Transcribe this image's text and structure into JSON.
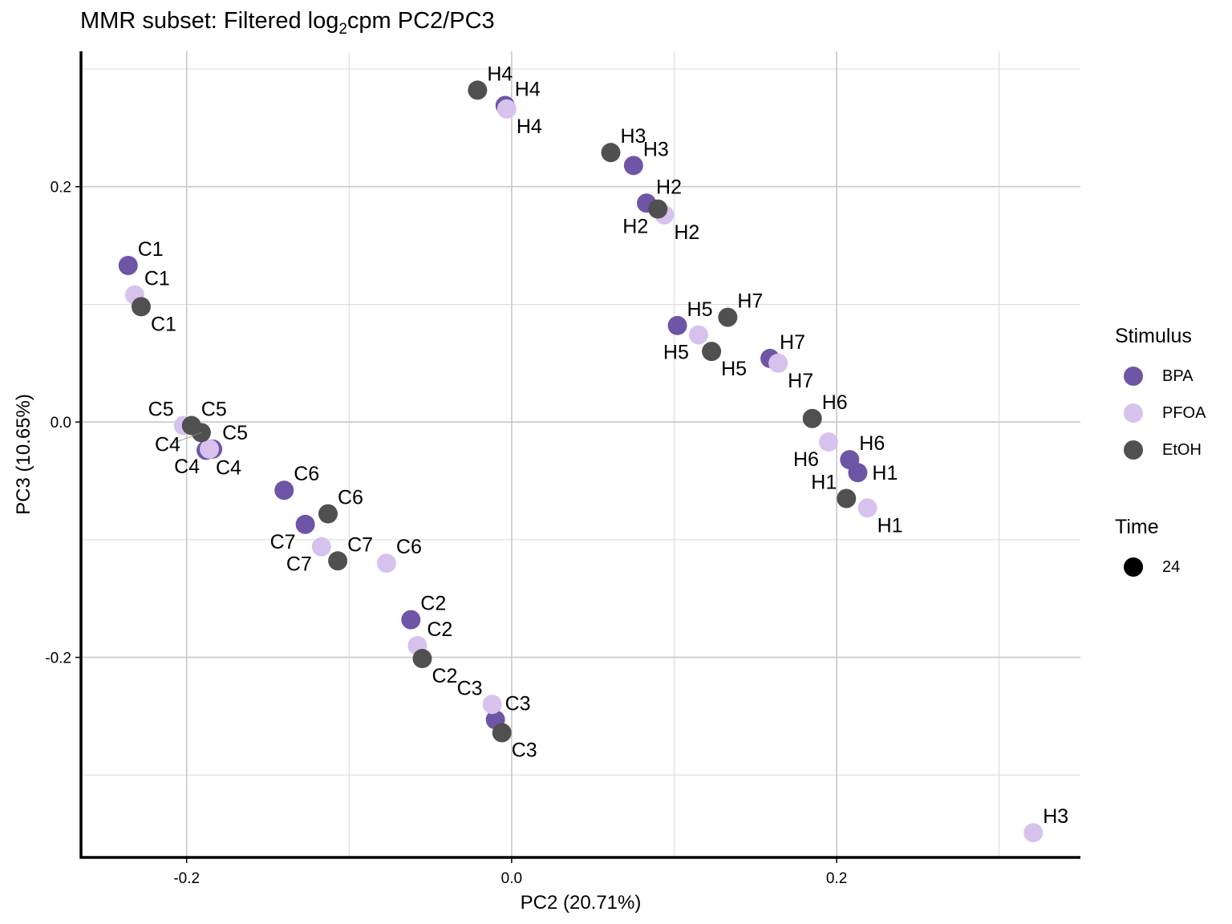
{
  "title": {
    "prefix": "MMR subset: Filtered log",
    "sub": "2",
    "suffix": "cpm PC2/PC3"
  },
  "colors": {
    "BPA": "#6E55A6",
    "PFOA": "#D7C2EE",
    "EtOH": "#505050",
    "grid": "#D9D9D9",
    "axis": "#000000"
  },
  "legend": {
    "stimulus_title": "Stimulus",
    "stimulus_items": [
      "BPA",
      "PFOA",
      "EtOH"
    ],
    "time_title": "Time",
    "time_items": [
      "24"
    ]
  },
  "chart_data": {
    "type": "scatter",
    "xlabel": "PC2 (20.71%)",
    "ylabel": "PC3 (10.65%)",
    "xlim": [
      -0.265,
      0.35
    ],
    "ylim": [
      -0.37,
      0.315
    ],
    "x_ticks": [
      -0.2,
      0.0,
      0.2
    ],
    "x_tick_labels": [
      "-0.2",
      "0.0",
      "0.2"
    ],
    "y_ticks": [
      -0.2,
      0.0,
      0.2
    ],
    "y_tick_labels": [
      "-0.2",
      "0.0",
      "0.2"
    ],
    "grid": true,
    "legend_position": "right",
    "series": [
      {
        "name": "BPA",
        "points": [
          {
            "label": "C1",
            "x": -0.236,
            "y": 0.133
          },
          {
            "label": "C4",
            "x": -0.188,
            "y": -0.024
          },
          {
            "label": "C5",
            "x": -0.184,
            "y": -0.023
          },
          {
            "label": "C6",
            "x": -0.14,
            "y": -0.058
          },
          {
            "label": "C7",
            "x": -0.127,
            "y": -0.087
          },
          {
            "label": "C2",
            "x": -0.062,
            "y": -0.168
          },
          {
            "label": "C3",
            "x": -0.01,
            "y": -0.253
          },
          {
            "label": "H4",
            "x": -0.004,
            "y": 0.269
          },
          {
            "label": "H3",
            "x": 0.075,
            "y": 0.218
          },
          {
            "label": "H2",
            "x": 0.083,
            "y": 0.186
          },
          {
            "label": "H5",
            "x": 0.102,
            "y": 0.082
          },
          {
            "label": "H7",
            "x": 0.159,
            "y": 0.054
          },
          {
            "label": "H6",
            "x": 0.208,
            "y": -0.032
          },
          {
            "label": "H1",
            "x": 0.213,
            "y": -0.043
          }
        ]
      },
      {
        "name": "PFOA",
        "points": [
          {
            "label": "C1",
            "x": -0.232,
            "y": 0.108
          },
          {
            "label": "C5",
            "x": -0.202,
            "y": -0.003
          },
          {
            "label": "C4",
            "x": -0.186,
            "y": -0.023
          },
          {
            "label": "C7",
            "x": -0.117,
            "y": -0.106
          },
          {
            "label": "C6",
            "x": -0.077,
            "y": -0.12
          },
          {
            "label": "C2",
            "x": -0.058,
            "y": -0.19
          },
          {
            "label": "C3",
            "x": -0.012,
            "y": -0.24
          },
          {
            "label": "H4",
            "x": -0.003,
            "y": 0.266
          },
          {
            "label": "H2",
            "x": 0.094,
            "y": 0.176
          },
          {
            "label": "H5",
            "x": 0.115,
            "y": 0.074
          },
          {
            "label": "H7",
            "x": 0.164,
            "y": 0.05
          },
          {
            "label": "H6",
            "x": 0.195,
            "y": -0.017
          },
          {
            "label": "H1",
            "x": 0.219,
            "y": -0.073
          },
          {
            "label": "H3",
            "x": 0.321,
            "y": -0.349
          }
        ]
      },
      {
        "name": "EtOH",
        "points": [
          {
            "label": "C1",
            "x": -0.228,
            "y": 0.098
          },
          {
            "label": "C5",
            "x": -0.197,
            "y": -0.003
          },
          {
            "label": "C4",
            "x": -0.191,
            "y": -0.009
          },
          {
            "label": "C6",
            "x": -0.113,
            "y": -0.078
          },
          {
            "label": "C7",
            "x": -0.107,
            "y": -0.118
          },
          {
            "label": "C2",
            "x": -0.055,
            "y": -0.201
          },
          {
            "label": "C3",
            "x": -0.006,
            "y": -0.264
          },
          {
            "label": "H4",
            "x": -0.021,
            "y": 0.282
          },
          {
            "label": "H3",
            "x": 0.061,
            "y": 0.229
          },
          {
            "label": "H2",
            "x": 0.09,
            "y": 0.181
          },
          {
            "label": "H7",
            "x": 0.133,
            "y": 0.089
          },
          {
            "label": "H5",
            "x": 0.123,
            "y": 0.06
          },
          {
            "label": "H6",
            "x": 0.185,
            "y": 0.003
          },
          {
            "label": "H1",
            "x": 0.206,
            "y": -0.065
          }
        ]
      }
    ]
  }
}
